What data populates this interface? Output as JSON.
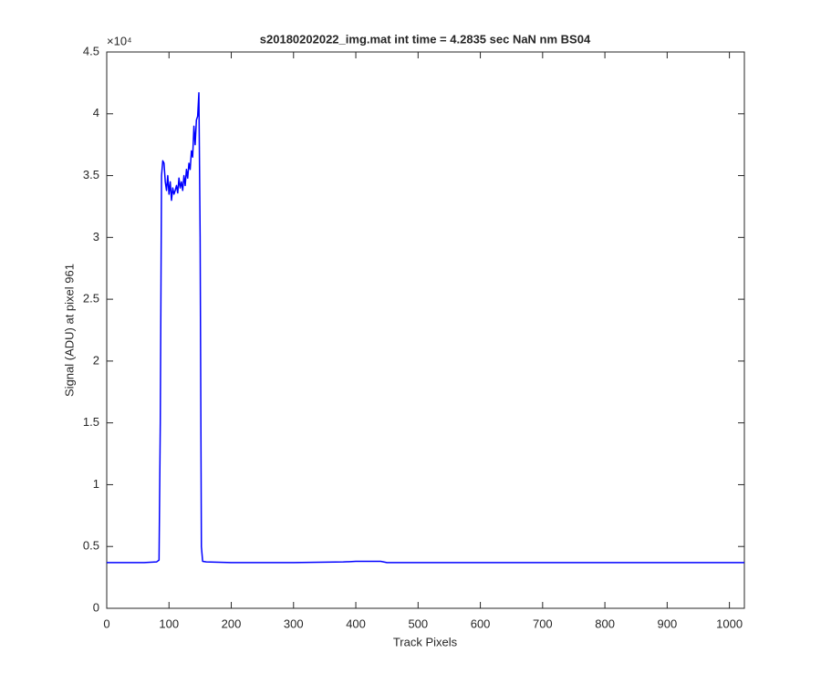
{
  "chart_data": {
    "type": "line",
    "title": "s20180202022_img.mat int time = 4.2835 sec  NaN nm BS04",
    "x_label": "Track Pixels",
    "y_label": "Signal (ADU) at pixel 961",
    "y_exponent_label": "×10⁴",
    "x": [
      0,
      20,
      40,
      60,
      80,
      84,
      86,
      88,
      90,
      92,
      94,
      96,
      98,
      100,
      102,
      104,
      106,
      108,
      110,
      112,
      114,
      116,
      118,
      120,
      122,
      124,
      126,
      128,
      130,
      132,
      134,
      136,
      138,
      140,
      142,
      144,
      146,
      148,
      150,
      152,
      154,
      160,
      200,
      300,
      380,
      400,
      440,
      450,
      500,
      600,
      700,
      800,
      900,
      1000,
      1024
    ],
    "values": [
      0.37,
      0.37,
      0.37,
      0.37,
      0.375,
      0.39,
      1.5,
      3.5,
      3.62,
      3.6,
      3.45,
      3.38,
      3.5,
      3.35,
      3.45,
      3.3,
      3.4,
      3.35,
      3.38,
      3.42,
      3.36,
      3.48,
      3.4,
      3.45,
      3.38,
      3.5,
      3.42,
      3.55,
      3.48,
      3.6,
      3.55,
      3.7,
      3.65,
      3.9,
      3.75,
      3.95,
      3.98,
      4.17,
      3.0,
      0.5,
      0.38,
      0.375,
      0.37,
      0.37,
      0.375,
      0.38,
      0.38,
      0.37,
      0.37,
      0.37,
      0.37,
      0.37,
      0.37,
      0.37,
      0.37
    ],
    "color": "#0000ff",
    "xlim": [
      0,
      1024
    ],
    "xticks": [
      0,
      100,
      200,
      300,
      400,
      500,
      600,
      700,
      800,
      900,
      1000
    ],
    "ylim": [
      0,
      4.5
    ],
    "yticks": [
      0,
      0.5,
      1,
      1.5,
      2,
      2.5,
      3,
      3.5,
      4,
      4.5
    ]
  }
}
